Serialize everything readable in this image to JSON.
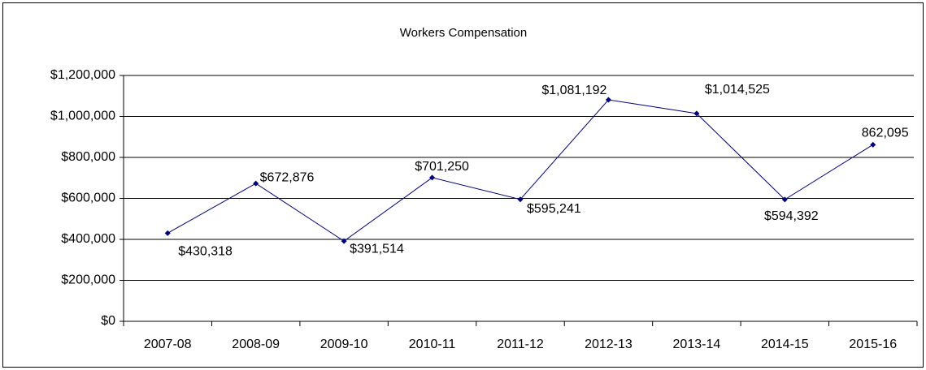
{
  "chart_data": {
    "type": "line",
    "title": "Workers Compensation",
    "categories": [
      "2007-08",
      "2008-09",
      "2009-10",
      "2010-11",
      "2011-12",
      "2012-13",
      "2013-14",
      "2014-15",
      "2015-16"
    ],
    "series": [
      {
        "name": "Workers Compensation",
        "color": "#000080",
        "values": [
          430318,
          672876,
          391514,
          701250,
          595241,
          1081192,
          1014525,
          594392,
          862095
        ],
        "value_labels": [
          "$430,318",
          "$672,876",
          "$391,514",
          "$701,250",
          "$595,241",
          "$1,081,192",
          "$1,014,525",
          "$594,392",
          "862,095"
        ]
      }
    ],
    "ylim": [
      0,
      1200000
    ],
    "yticks": [
      {
        "value": 0,
        "label": "$0"
      },
      {
        "value": 200000,
        "label": "$200,000"
      },
      {
        "value": 400000,
        "label": "$400,000"
      },
      {
        "value": 600000,
        "label": "$600,000"
      },
      {
        "value": 800000,
        "label": "$800,000"
      },
      {
        "value": 1000000,
        "label": "$1,000,000"
      },
      {
        "value": 1200000,
        "label": "$1,200,000"
      }
    ],
    "grid": true
  }
}
